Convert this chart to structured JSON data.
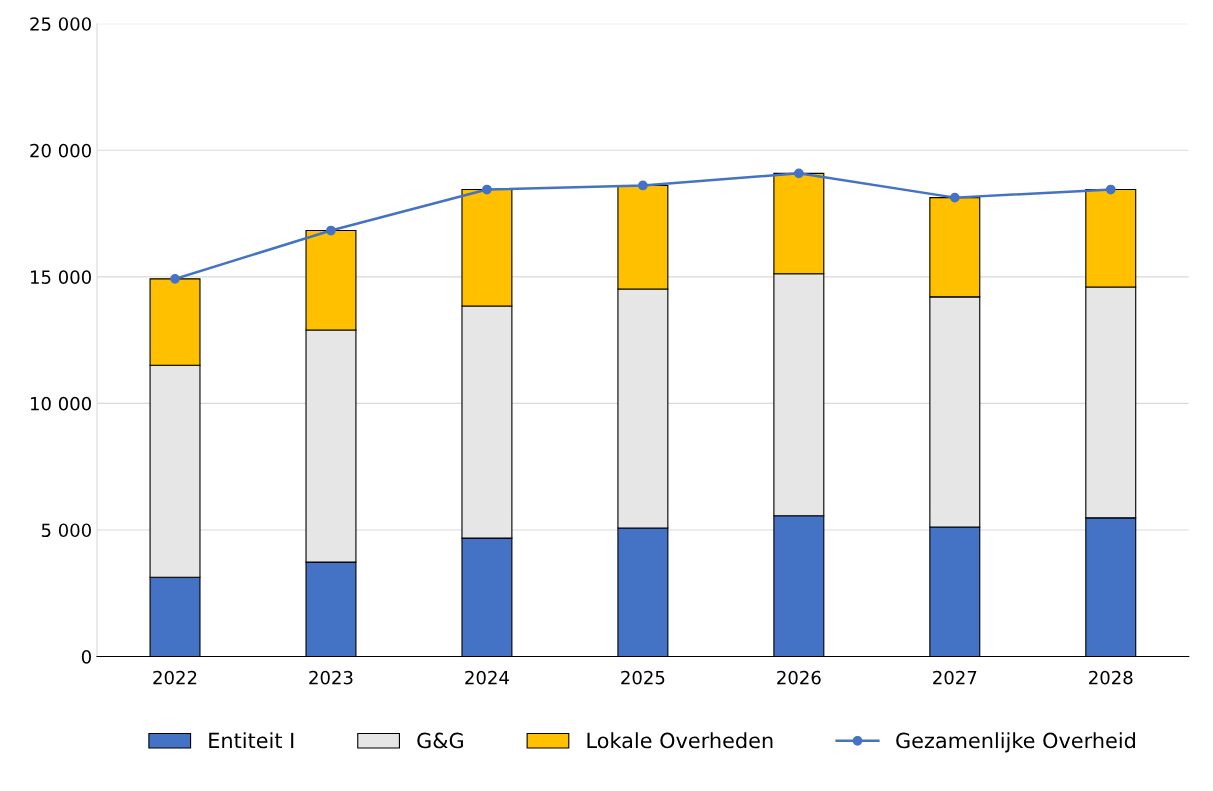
{
  "chart_data": {
    "type": "bar",
    "stacked": true,
    "categories": [
      "2022",
      "2023",
      "2024",
      "2025",
      "2026",
      "2027",
      "2028"
    ],
    "series": [
      {
        "name": "Entiteit I",
        "color": "#4472c4",
        "values": [
          3130,
          3730,
          4680,
          5080,
          5560,
          5120,
          5480
        ]
      },
      {
        "name": "G&G",
        "color": "#e6e6e6",
        "values": [
          8380,
          9170,
          9170,
          9440,
          9560,
          9090,
          9120
        ]
      },
      {
        "name": "Lokale Overheden",
        "color": "#ffc000",
        "values": [
          3410,
          3930,
          4600,
          4090,
          3970,
          3920,
          3850
        ]
      },
      {
        "name": "Gezamenlijke Overheid",
        "type": "line",
        "color": "#4472c4",
        "marker": "circle",
        "values": [
          14920,
          16830,
          18450,
          18610,
          19090,
          18130,
          18450
        ]
      }
    ],
    "ylim": [
      0,
      25000
    ],
    "yticks": [
      0,
      {
        "value": 5000,
        "label": "5 000"
      },
      {
        "value": 10000,
        "label": "10 000"
      },
      {
        "value": 15000,
        "label": "15 000"
      },
      {
        "value": 20000,
        "label": "20 000"
      },
      {
        "value": 25000,
        "label": "25 000"
      }
    ],
    "grid": "y",
    "legend": "bottom"
  }
}
